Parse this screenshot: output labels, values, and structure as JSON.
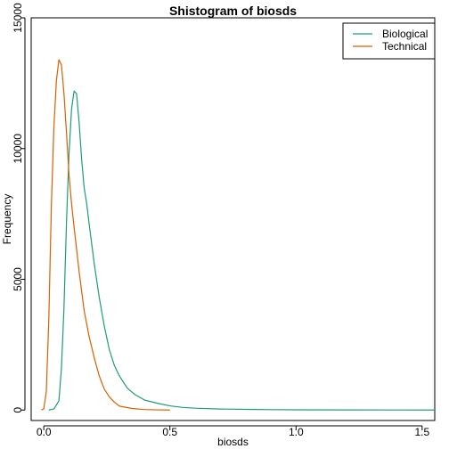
{
  "chart_data": {
    "type": "line",
    "title": "Shistogram of biosds",
    "xlabel": "biosds",
    "ylabel": "Frequency",
    "xlim": [
      -0.05,
      1.55
    ],
    "ylim": [
      -400,
      15000
    ],
    "xticks": [
      0.0,
      0.5,
      1.0,
      1.5
    ],
    "xtick_labels": [
      "0.0",
      "0.5",
      "1.0",
      "1.5"
    ],
    "yticks": [
      0,
      5000,
      10000,
      15000
    ],
    "ytick_labels": [
      "0",
      "5000",
      "10000",
      "15000"
    ],
    "legend_position": "top-right",
    "series": [
      {
        "name": "Biological",
        "color": "#1b9e77",
        "x": [
          0.02,
          0.04,
          0.06,
          0.07,
          0.08,
          0.09,
          0.1,
          0.11,
          0.12,
          0.13,
          0.14,
          0.15,
          0.16,
          0.17,
          0.18,
          0.2,
          0.22,
          0.24,
          0.26,
          0.28,
          0.3,
          0.33,
          0.36,
          0.4,
          0.45,
          0.5,
          0.55,
          0.6,
          0.7,
          0.8,
          0.9,
          1.0,
          1.2,
          1.4,
          1.55
        ],
        "y": [
          0,
          40,
          350,
          1600,
          3900,
          7200,
          9800,
          11500,
          12200,
          12100,
          11000,
          9600,
          8500,
          7900,
          7100,
          5600,
          4300,
          3200,
          2300,
          1700,
          1300,
          850,
          600,
          380,
          260,
          160,
          100,
          70,
          40,
          25,
          15,
          8,
          4,
          2,
          0
        ]
      },
      {
        "name": "Technical",
        "color": "#d95f02",
        "x": [
          -0.01,
          0.0,
          0.01,
          0.02,
          0.03,
          0.04,
          0.05,
          0.06,
          0.07,
          0.08,
          0.09,
          0.1,
          0.11,
          0.12,
          0.14,
          0.16,
          0.18,
          0.2,
          0.22,
          0.24,
          0.26,
          0.28,
          0.3,
          0.35,
          0.4,
          0.45,
          0.5
        ],
        "y": [
          0,
          50,
          700,
          3500,
          7800,
          10800,
          12600,
          13400,
          13200,
          12100,
          10600,
          9000,
          7900,
          7000,
          5300,
          3800,
          2800,
          2000,
          1300,
          800,
          500,
          300,
          150,
          60,
          20,
          6,
          0
        ]
      }
    ]
  }
}
